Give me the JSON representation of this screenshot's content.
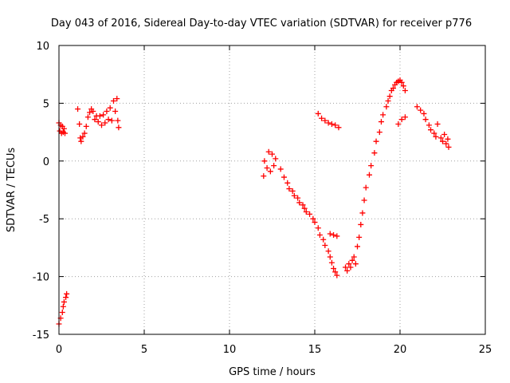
{
  "chart_data": {
    "type": "scatter",
    "title": "Day 043 of 2016, Sidereal Day-to-day VTEC variation (SDTVAR) for receiver p776",
    "xlabel": "GPS time / hours",
    "ylabel": "SDTVAR / TECUs",
    "xlim": [
      0,
      25
    ],
    "ylim": [
      -15,
      10
    ],
    "xticks": [
      "0",
      "5",
      "10",
      "15",
      "20",
      "25"
    ],
    "yticks": [
      "-15",
      "-10",
      "-5",
      "0",
      "5",
      "10"
    ],
    "grid": true,
    "marker": "+",
    "series": [
      {
        "name": "SDTVAR",
        "color": "#ff0000",
        "points": [
          [
            0.0,
            3.3
          ],
          [
            0.05,
            2.6
          ],
          [
            0.1,
            3.1
          ],
          [
            0.15,
            2.4
          ],
          [
            0.2,
            3.0
          ],
          [
            0.25,
            2.5
          ],
          [
            0.3,
            2.8
          ],
          [
            0.35,
            2.4
          ],
          [
            0.0,
            -14.1
          ],
          [
            0.1,
            -13.6
          ],
          [
            0.2,
            -13.1
          ],
          [
            0.25,
            -12.6
          ],
          [
            0.3,
            -12.2
          ],
          [
            0.4,
            -11.8
          ],
          [
            0.45,
            -11.5
          ],
          [
            1.1,
            4.5
          ],
          [
            1.2,
            3.2
          ],
          [
            1.25,
            2.0
          ],
          [
            1.3,
            1.7
          ],
          [
            1.4,
            2.1
          ],
          [
            1.5,
            2.4
          ],
          [
            1.6,
            3.0
          ],
          [
            1.7,
            3.8
          ],
          [
            1.8,
            4.2
          ],
          [
            1.9,
            4.5
          ],
          [
            2.0,
            4.3
          ],
          [
            2.1,
            3.6
          ],
          [
            2.2,
            3.9
          ],
          [
            2.3,
            3.4
          ],
          [
            2.4,
            3.9
          ],
          [
            2.5,
            3.1
          ],
          [
            2.6,
            4.0
          ],
          [
            2.7,
            3.3
          ],
          [
            2.8,
            4.3
          ],
          [
            2.9,
            3.6
          ],
          [
            3.0,
            4.6
          ],
          [
            3.1,
            3.5
          ],
          [
            3.2,
            5.2
          ],
          [
            3.3,
            4.3
          ],
          [
            3.4,
            5.4
          ],
          [
            3.45,
            3.5
          ],
          [
            3.5,
            2.9
          ],
          [
            12.0,
            -1.3
          ],
          [
            12.05,
            0.0
          ],
          [
            12.2,
            -0.6
          ],
          [
            12.3,
            0.8
          ],
          [
            12.4,
            -0.9
          ],
          [
            12.5,
            0.6
          ],
          [
            12.6,
            -0.4
          ],
          [
            12.7,
            0.2
          ],
          [
            13.0,
            -0.7
          ],
          [
            13.2,
            -1.4
          ],
          [
            13.4,
            -1.9
          ],
          [
            13.5,
            -2.4
          ],
          [
            13.7,
            -2.6
          ],
          [
            13.8,
            -3.0
          ],
          [
            14.0,
            -3.2
          ],
          [
            14.1,
            -3.6
          ],
          [
            14.3,
            -3.8
          ],
          [
            14.4,
            -4.1
          ],
          [
            14.5,
            -4.4
          ],
          [
            14.7,
            -4.6
          ],
          [
            14.9,
            -5.0
          ],
          [
            15.0,
            -5.3
          ],
          [
            15.2,
            -5.8
          ],
          [
            15.3,
            -6.4
          ],
          [
            15.5,
            -6.8
          ],
          [
            15.6,
            -7.3
          ],
          [
            15.8,
            -7.8
          ],
          [
            15.9,
            -8.3
          ],
          [
            16.0,
            -8.8
          ],
          [
            16.1,
            -9.3
          ],
          [
            16.2,
            -9.6
          ],
          [
            16.3,
            -9.9
          ],
          [
            15.9,
            -6.3
          ],
          [
            16.1,
            -6.4
          ],
          [
            16.3,
            -6.5
          ],
          [
            15.2,
            4.1
          ],
          [
            15.4,
            3.7
          ],
          [
            15.6,
            3.5
          ],
          [
            15.8,
            3.3
          ],
          [
            16.0,
            3.2
          ],
          [
            16.2,
            3.1
          ],
          [
            16.4,
            2.9
          ],
          [
            16.8,
            -9.2
          ],
          [
            16.9,
            -9.5
          ],
          [
            17.0,
            -8.9
          ],
          [
            17.1,
            -9.2
          ],
          [
            17.2,
            -8.6
          ],
          [
            17.3,
            -8.3
          ],
          [
            17.4,
            -8.9
          ],
          [
            17.5,
            -7.4
          ],
          [
            17.6,
            -6.6
          ],
          [
            17.7,
            -5.5
          ],
          [
            17.8,
            -4.5
          ],
          [
            17.9,
            -3.4
          ],
          [
            18.0,
            -2.3
          ],
          [
            18.2,
            -1.2
          ],
          [
            18.3,
            -0.4
          ],
          [
            18.5,
            0.7
          ],
          [
            18.6,
            1.7
          ],
          [
            18.8,
            2.5
          ],
          [
            18.9,
            3.4
          ],
          [
            19.0,
            4.0
          ],
          [
            19.2,
            4.7
          ],
          [
            19.3,
            5.2
          ],
          [
            19.4,
            5.6
          ],
          [
            19.5,
            6.1
          ],
          [
            19.6,
            6.3
          ],
          [
            19.7,
            6.6
          ],
          [
            19.8,
            6.8
          ],
          [
            19.9,
            6.9
          ],
          [
            20.0,
            7.0
          ],
          [
            20.1,
            6.8
          ],
          [
            20.2,
            6.5
          ],
          [
            20.3,
            6.1
          ],
          [
            19.9,
            3.2
          ],
          [
            20.1,
            3.6
          ],
          [
            20.3,
            3.8
          ],
          [
            21.0,
            4.7
          ],
          [
            21.2,
            4.4
          ],
          [
            21.4,
            4.1
          ],
          [
            21.5,
            3.6
          ],
          [
            21.7,
            3.1
          ],
          [
            21.8,
            2.7
          ],
          [
            22.0,
            2.4
          ],
          [
            22.1,
            2.1
          ],
          [
            22.2,
            3.2
          ],
          [
            22.4,
            2.0
          ],
          [
            22.5,
            1.7
          ],
          [
            22.6,
            2.3
          ],
          [
            22.7,
            1.5
          ],
          [
            22.8,
            1.9
          ],
          [
            22.85,
            1.2
          ]
        ]
      }
    ]
  }
}
